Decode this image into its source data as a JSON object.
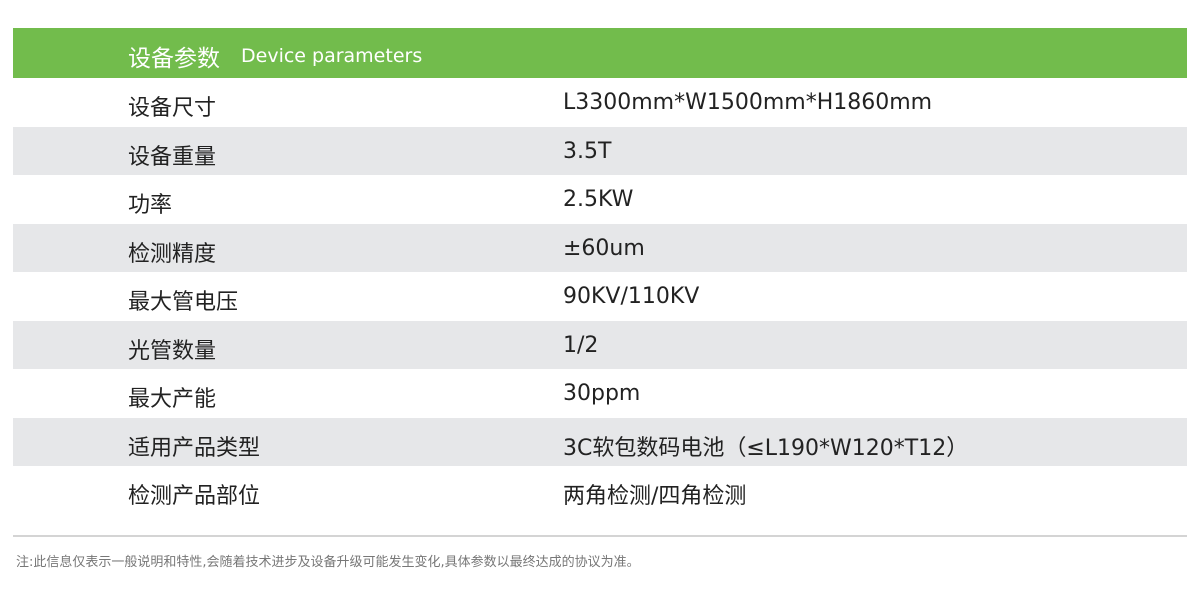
{
  "header": {
    "title_zh": "设备参数",
    "title_en": "Device parameters",
    "color": "#72bc4c"
  },
  "rows": [
    {
      "label": "设备尺寸",
      "value": "L3300mm*W1500mm*H1860mm"
    },
    {
      "label": "设备重量",
      "value": "3.5T"
    },
    {
      "label": "功率",
      "value": "2.5KW"
    },
    {
      "label": "检测精度",
      "value": "±60um"
    },
    {
      "label": "最大管电压",
      "value": "90KV/110KV"
    },
    {
      "label": "光管数量",
      "value": "1/2"
    },
    {
      "label": "最大产能",
      "value": "30ppm"
    },
    {
      "label": "适用产品类型",
      "value": "3C软包数码电池（≤L190*W120*T12）"
    },
    {
      "label": "检测产品部位",
      "value": "两角检测/四角检测"
    }
  ],
  "note": "注:此信息仅表示一般说明和特性,会随着技术进步及设备升级可能发生变化,具体参数以最终达成的协议为准。"
}
